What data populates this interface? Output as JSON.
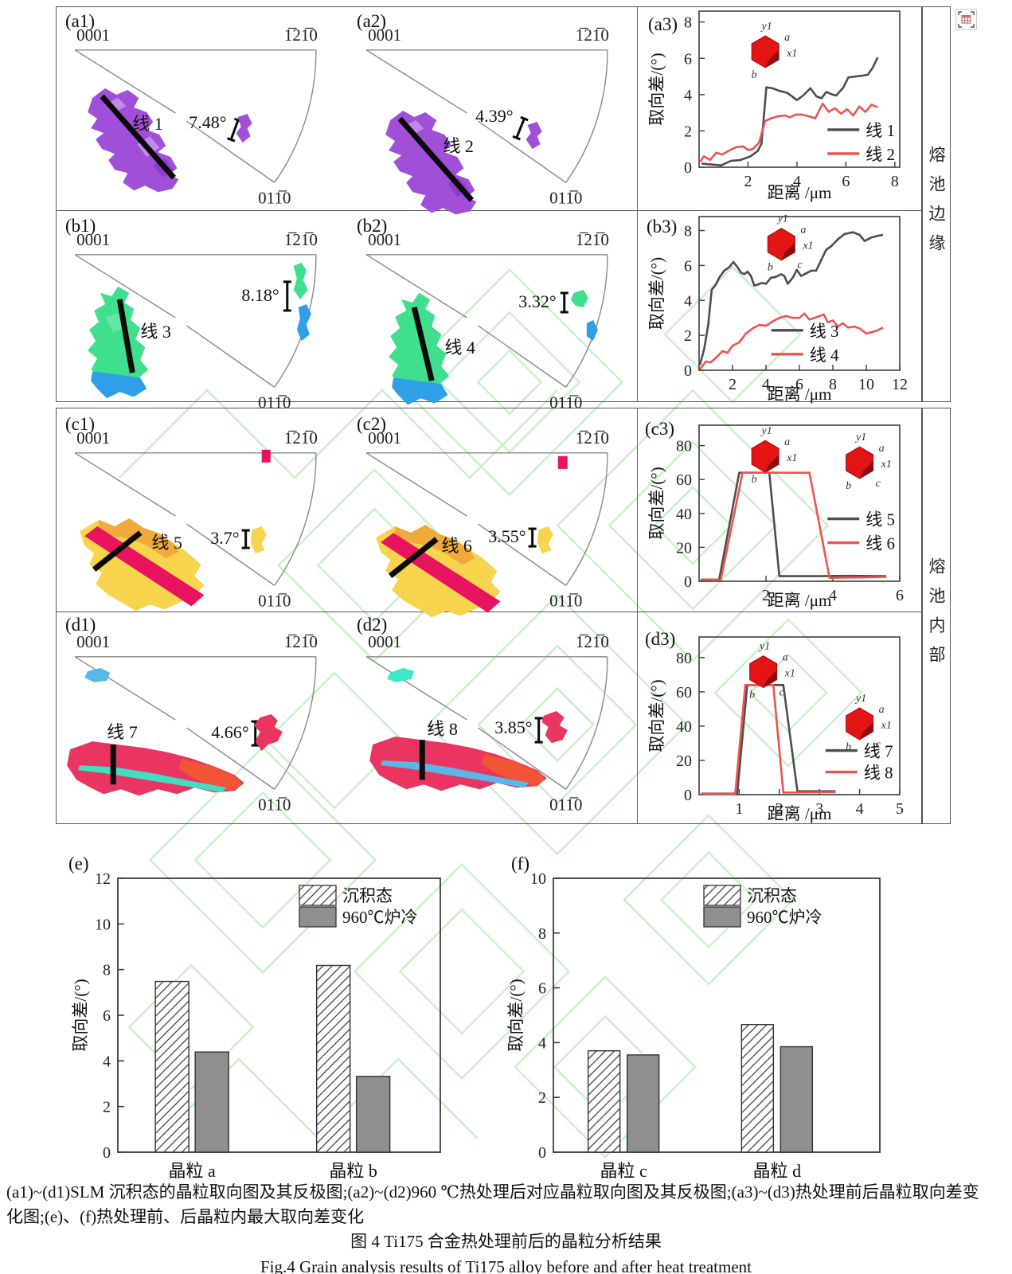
{
  "pole": {
    "tl": "0001",
    "tr": "1̅21̅0",
    "bm": "011̅0"
  },
  "side_labels": {
    "top": "熔池边缘",
    "bottom": "熔池内部"
  },
  "panels": {
    "a1": {
      "tag": "(a1)",
      "line_label": "线 1",
      "angle": "7.48°"
    },
    "a2": {
      "tag": "(a2)",
      "line_label": "线 2",
      "angle": "4.39°"
    },
    "b1": {
      "tag": "(b1)",
      "line_label": "线 3",
      "angle": "8.18°"
    },
    "b2": {
      "tag": "(b2)",
      "line_label": "线 4",
      "angle": "3.32°"
    },
    "c1": {
      "tag": "(c1)",
      "line_label": "线 5",
      "angle": "3.7°"
    },
    "c2": {
      "tag": "(c2)",
      "line_label": "线 6",
      "angle": "3.55°"
    },
    "d1": {
      "tag": "(d1)",
      "line_label": "线 7",
      "angle": "4.66°"
    },
    "d2": {
      "tag": "(d2)",
      "line_label": "线 8",
      "angle": "3.85°"
    }
  },
  "colors": {
    "purple": "#a050d8",
    "purple_light": "#c490ec",
    "purple_dark": "#8a3ac6",
    "green": "#3fdf8e",
    "green_light": "#66e9a8",
    "blue": "#2f9fe8",
    "yellow": "#f7d44e",
    "orange": "#efa93c",
    "crimson": "#e8135e",
    "red_grain": "#e93560",
    "orange_red": "#f05535",
    "turquoise": "#3fdfc0",
    "sky": "#58b8e8",
    "cyan": "#40e8c8",
    "axis": "#3d3d3d",
    "watermark": "#8fe08f"
  },
  "chart_data": {
    "a3": {
      "type": "line",
      "tag": "(a3)",
      "xlabel": "距离 /μm",
      "ylabel": "取向差/(°)",
      "xlim": [
        0,
        8.2
      ],
      "ylim": [
        0,
        8.6
      ],
      "xticks": [
        2,
        4,
        6,
        8
      ],
      "yticks": [
        0,
        2,
        4,
        6,
        8
      ],
      "series": [
        {
          "name": "线 1",
          "color": "#4d4d4d",
          "points": [
            [
              0.1,
              0.2
            ],
            [
              0.5,
              0.15
            ],
            [
              0.9,
              0.1
            ],
            [
              1.3,
              0.35
            ],
            [
              1.7,
              0.4
            ],
            [
              2.1,
              0.6
            ],
            [
              2.4,
              0.9
            ],
            [
              2.55,
              1.3
            ],
            [
              2.75,
              4.4
            ],
            [
              3.0,
              4.35
            ],
            [
              3.3,
              4.2
            ],
            [
              3.6,
              4.1
            ],
            [
              3.8,
              3.9
            ],
            [
              4.0,
              3.7
            ],
            [
              4.25,
              3.95
            ],
            [
              4.55,
              4.35
            ],
            [
              4.8,
              3.9
            ],
            [
              5.0,
              3.8
            ],
            [
              5.2,
              4.15
            ],
            [
              5.45,
              4.0
            ],
            [
              5.6,
              3.95
            ],
            [
              5.9,
              4.4
            ],
            [
              6.1,
              4.95
            ],
            [
              6.4,
              5.0
            ],
            [
              6.7,
              5.05
            ],
            [
              6.9,
              5.1
            ],
            [
              7.1,
              5.5
            ],
            [
              7.3,
              6.05
            ]
          ]
        },
        {
          "name": "线 2",
          "color": "#ef5350",
          "points": [
            [
              0.05,
              0.3
            ],
            [
              0.2,
              0.6
            ],
            [
              0.45,
              0.4
            ],
            [
              0.7,
              0.8
            ],
            [
              0.95,
              0.7
            ],
            [
              1.2,
              0.9
            ],
            [
              1.5,
              1.1
            ],
            [
              1.8,
              1.15
            ],
            [
              2.0,
              0.95
            ],
            [
              2.2,
              1.0
            ],
            [
              2.45,
              1.35
            ],
            [
              2.7,
              2.55
            ],
            [
              2.95,
              2.7
            ],
            [
              3.2,
              2.8
            ],
            [
              3.5,
              2.85
            ],
            [
              3.7,
              2.75
            ],
            [
              3.95,
              2.9
            ],
            [
              4.2,
              2.9
            ],
            [
              4.5,
              2.8
            ],
            [
              4.75,
              2.7
            ],
            [
              5.05,
              3.5
            ],
            [
              5.3,
              3.05
            ],
            [
              5.55,
              3.25
            ],
            [
              5.8,
              2.95
            ],
            [
              6.05,
              3.2
            ],
            [
              6.3,
              2.85
            ],
            [
              6.55,
              3.35
            ],
            [
              6.8,
              3.05
            ],
            [
              7.05,
              3.45
            ],
            [
              7.3,
              3.3
            ]
          ]
        }
      ],
      "insets": [
        {
          "labels": [
            "y1",
            "a",
            "x1",
            "b"
          ]
        }
      ]
    },
    "b3": {
      "type": "line",
      "tag": "(b3)",
      "xlabel": "距离 /μm",
      "ylabel": "取向差/(°)",
      "xlim": [
        0,
        12
      ],
      "ylim": [
        0,
        8.8
      ],
      "xticks": [
        2,
        4,
        6,
        8,
        10,
        12
      ],
      "yticks": [
        0,
        2,
        4,
        6,
        8
      ],
      "series": [
        {
          "name": "线 3",
          "color": "#4d4d4d",
          "points": [
            [
              0.05,
              0.3
            ],
            [
              0.3,
              1.2
            ],
            [
              0.55,
              2.6
            ],
            [
              0.75,
              4.6
            ],
            [
              1.0,
              4.9
            ],
            [
              1.2,
              5.3
            ],
            [
              1.5,
              5.7
            ],
            [
              1.8,
              5.9
            ],
            [
              2.05,
              6.2
            ],
            [
              2.3,
              5.9
            ],
            [
              2.5,
              5.6
            ],
            [
              2.7,
              5.5
            ],
            [
              2.9,
              5.65
            ],
            [
              3.1,
              5.4
            ],
            [
              3.3,
              4.85
            ],
            [
              3.5,
              4.9
            ],
            [
              3.75,
              5.0
            ],
            [
              4.0,
              4.95
            ],
            [
              4.3,
              5.3
            ],
            [
              4.6,
              5.35
            ],
            [
              4.9,
              5.5
            ],
            [
              5.1,
              5.4
            ],
            [
              5.3,
              4.95
            ],
            [
              5.6,
              5.3
            ],
            [
              5.85,
              5.75
            ],
            [
              6.1,
              5.4
            ],
            [
              6.4,
              5.55
            ],
            [
              6.7,
              5.7
            ],
            [
              7.0,
              5.7
            ],
            [
              7.3,
              6.3
            ],
            [
              7.6,
              6.9
            ],
            [
              7.9,
              7.1
            ],
            [
              8.3,
              7.5
            ],
            [
              8.7,
              7.8
            ],
            [
              9.2,
              7.9
            ],
            [
              9.6,
              7.75
            ],
            [
              9.9,
              7.4
            ],
            [
              10.3,
              7.6
            ],
            [
              10.7,
              7.7
            ],
            [
              11.0,
              7.75
            ]
          ]
        },
        {
          "name": "线 4",
          "color": "#ef5350",
          "points": [
            [
              0.05,
              0.05
            ],
            [
              0.4,
              0.5
            ],
            [
              0.7,
              0.45
            ],
            [
              1.1,
              0.8
            ],
            [
              1.4,
              1.1
            ],
            [
              1.7,
              1.0
            ],
            [
              2.0,
              1.4
            ],
            [
              2.4,
              1.6
            ],
            [
              2.8,
              2.1
            ],
            [
              3.2,
              2.4
            ],
            [
              3.6,
              2.6
            ],
            [
              4.0,
              2.55
            ],
            [
              4.4,
              2.8
            ],
            [
              4.8,
              3.0
            ],
            [
              5.2,
              3.1
            ],
            [
              5.6,
              3.0
            ],
            [
              6.0,
              3.0
            ],
            [
              6.3,
              3.25
            ],
            [
              6.6,
              2.9
            ],
            [
              6.9,
              3.0
            ],
            [
              7.2,
              3.1
            ],
            [
              7.45,
              3.2
            ],
            [
              7.7,
              2.75
            ],
            [
              8.0,
              2.85
            ],
            [
              8.3,
              2.5
            ],
            [
              8.6,
              2.7
            ],
            [
              8.9,
              2.45
            ],
            [
              9.3,
              2.5
            ],
            [
              9.6,
              2.4
            ],
            [
              10.0,
              2.1
            ],
            [
              10.4,
              2.2
            ],
            [
              10.7,
              2.3
            ],
            [
              11.0,
              2.45
            ]
          ]
        }
      ],
      "insets": [
        {
          "labels": [
            "y1",
            "a",
            "x1",
            "b",
            "c"
          ]
        }
      ]
    },
    "c3": {
      "type": "line",
      "tag": "(c3)",
      "xlabel": "距离 /μm",
      "ylabel": "取向差/(°)",
      "xlim": [
        0,
        6
      ],
      "ylim": [
        0,
        92
      ],
      "xticks": [
        2,
        4,
        6
      ],
      "yticks": [
        0,
        20,
        40,
        60,
        80
      ],
      "series": [
        {
          "name": "线 5",
          "color": "#4d4d4d",
          "points": [
            [
              0.05,
              1
            ],
            [
              0.6,
              1
            ],
            [
              1.2,
              64
            ],
            [
              2.1,
              64
            ],
            [
              2.4,
              3
            ],
            [
              3.5,
              3
            ],
            [
              4.5,
              3.2
            ],
            [
              5.6,
              3
            ]
          ]
        },
        {
          "name": "线 6",
          "color": "#ef5350",
          "points": [
            [
              0.05,
              1
            ],
            [
              0.65,
              1
            ],
            [
              1.3,
              64
            ],
            [
              3.3,
              64
            ],
            [
              3.9,
              2
            ],
            [
              5.0,
              2.3
            ],
            [
              5.6,
              2.6
            ]
          ]
        }
      ],
      "insets": [
        {
          "labels": [
            "y1",
            "b",
            "a",
            "x1"
          ]
        },
        {
          "labels": [
            "y1",
            "a",
            "x1",
            "c",
            "b"
          ]
        }
      ]
    },
    "d3": {
      "type": "line",
      "tag": "(d3)",
      "xlabel": "距离 /μm",
      "ylabel": "取向差/(°)",
      "xlim": [
        0,
        5
      ],
      "ylim": [
        0,
        92
      ],
      "xticks": [
        1,
        2,
        3,
        4,
        5
      ],
      "yticks": [
        0,
        20,
        40,
        60,
        80
      ],
      "series": [
        {
          "name": "线 7",
          "color": "#4d4d4d",
          "points": [
            [
              0.05,
              0.6
            ],
            [
              0.95,
              0.6
            ],
            [
              1.2,
              64
            ],
            [
              2.1,
              64
            ],
            [
              2.45,
              2
            ],
            [
              3.4,
              2
            ]
          ]
        },
        {
          "name": "线 8",
          "color": "#ef5350",
          "points": [
            [
              0.05,
              0.4
            ],
            [
              0.9,
              0.4
            ],
            [
              1.15,
              64
            ],
            [
              1.85,
              64
            ],
            [
              2.1,
              1.2
            ],
            [
              3.4,
              1.5
            ]
          ]
        }
      ],
      "insets": [
        {
          "labels": [
            "y1",
            "c",
            "a",
            "x1",
            "b"
          ]
        },
        {
          "labels": [
            "y1",
            "a",
            "c",
            "x1",
            "b"
          ]
        }
      ]
    },
    "e": {
      "type": "bar",
      "tag": "(e)",
      "ylabel": "取向差/(°)",
      "ylim": [
        0,
        12
      ],
      "yticks": [
        0,
        2,
        4,
        6,
        8,
        10,
        12
      ],
      "categories": [
        "晶粒 a",
        "晶粒 b"
      ],
      "series": [
        {
          "name": "沉积态",
          "style": "hatch",
          "values": [
            7.48,
            8.18
          ]
        },
        {
          "name": "960℃炉冷",
          "style": "solid",
          "color": "#8f8f8f",
          "values": [
            4.39,
            3.32
          ]
        }
      ]
    },
    "f": {
      "type": "bar",
      "tag": "(f)",
      "ylabel": "取向差/(°)",
      "ylim": [
        0,
        10
      ],
      "yticks": [
        0,
        2,
        4,
        6,
        8,
        10
      ],
      "categories": [
        "晶粒 c",
        "晶粒 d"
      ],
      "series": [
        {
          "name": "沉积态",
          "style": "hatch",
          "values": [
            3.7,
            4.66
          ]
        },
        {
          "name": "960℃炉冷",
          "style": "solid",
          "color": "#8f8f8f",
          "values": [
            3.55,
            3.85
          ]
        }
      ]
    }
  },
  "caption": {
    "line1": "(a1)~(d1)SLM 沉积态的晶粒取向图及其反极图;(a2)~(d2)960 ℃热处理后对应晶粒取向图及其反极图;(a3)~(d3)热处理前后晶粒取向差变",
    "line2": "化图;(e)、(f)热处理前、后晶粒内最大取向差变化",
    "zh": "图 4  Ti175 合金热处理前后的晶粒分析结果",
    "en": "Fig.4  Grain analysis results of Ti175 alloy before and after heat treatment"
  }
}
